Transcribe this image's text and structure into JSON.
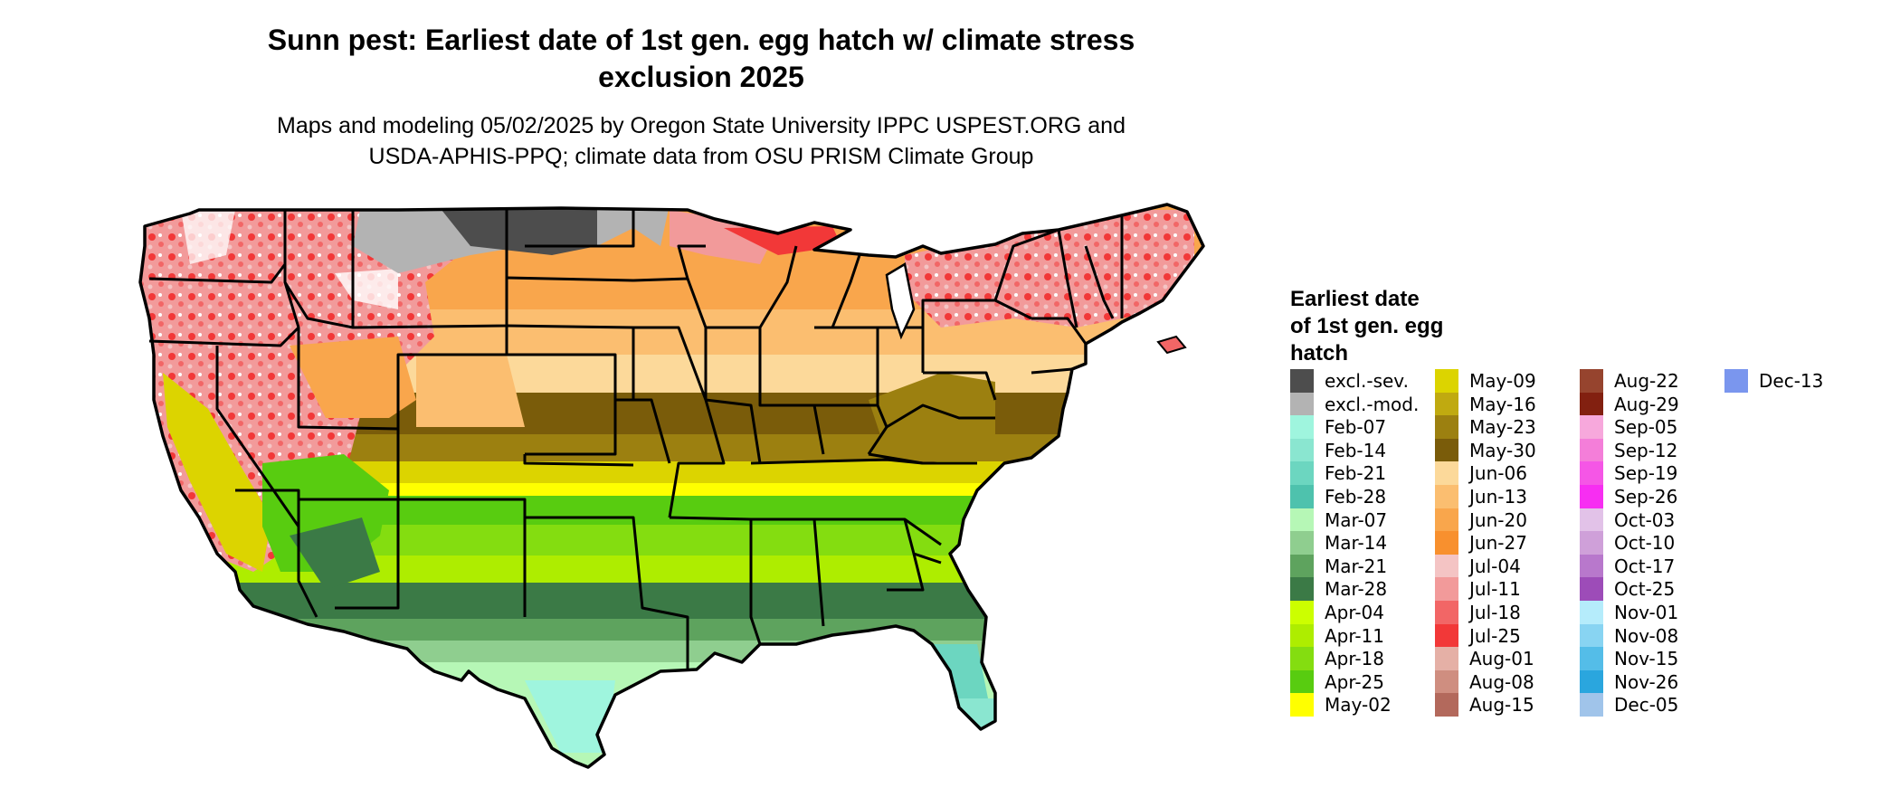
{
  "title": {
    "line1": "Sunn pest: Earliest date of 1st gen. egg hatch w/ climate stress",
    "line2": "exclusion 2025"
  },
  "subtitle": {
    "line1": "Maps and modeling 05/02/2025 by Oregon State University IPPC USPEST.ORG and",
    "line2": "USDA-APHIS-PPQ; climate data from OSU PRISM Climate Group"
  },
  "legend": {
    "title_lines": [
      "Earliest date",
      "of 1st gen. egg",
      "hatch"
    ],
    "columns": [
      [
        {
          "label": "excl.-sev.",
          "color": "#4d4d4d"
        },
        {
          "label": "excl.-mod.",
          "color": "#b3b3b3"
        },
        {
          "label": "Feb-07",
          "color": "#9ff5de"
        },
        {
          "label": "Feb-14",
          "color": "#8ae6d0"
        },
        {
          "label": "Feb-21",
          "color": "#6cd6c0"
        },
        {
          "label": "Feb-28",
          "color": "#4ec2ad"
        },
        {
          "label": "Mar-07",
          "color": "#b6f7b6"
        },
        {
          "label": "Mar-14",
          "color": "#8fce8f"
        },
        {
          "label": "Mar-21",
          "color": "#5ea35e"
        },
        {
          "label": "Mar-28",
          "color": "#3b7a46"
        },
        {
          "label": "Apr-04",
          "color": "#ccff00"
        },
        {
          "label": "Apr-11",
          "color": "#aeed00"
        },
        {
          "label": "Apr-18",
          "color": "#84dd10"
        },
        {
          "label": "Apr-25",
          "color": "#58cc10"
        },
        {
          "label": "May-02",
          "color": "#ffff00"
        }
      ],
      [
        {
          "label": "May-09",
          "color": "#dcd400"
        },
        {
          "label": "May-16",
          "color": "#c0aa10"
        },
        {
          "label": "May-23",
          "color": "#9c8010"
        },
        {
          "label": "May-30",
          "color": "#7a5c0a"
        },
        {
          "label": "Jun-06",
          "color": "#fcd99a"
        },
        {
          "label": "Jun-13",
          "color": "#fbbe70"
        },
        {
          "label": "Jun-20",
          "color": "#f9a64c"
        },
        {
          "label": "Jun-27",
          "color": "#f8902e"
        },
        {
          "label": "Jul-04",
          "color": "#f4c4c4"
        },
        {
          "label": "Jul-11",
          "color": "#f29a9a"
        },
        {
          "label": "Jul-18",
          "color": "#f26666"
        },
        {
          "label": "Jul-25",
          "color": "#f23838"
        },
        {
          "label": "Aug-01",
          "color": "#e5b0a6"
        },
        {
          "label": "Aug-08",
          "color": "#cf8e80"
        },
        {
          "label": "Aug-15",
          "color": "#b3695c"
        }
      ],
      [
        {
          "label": "Aug-22",
          "color": "#96442e"
        },
        {
          "label": "Aug-29",
          "color": "#822010"
        },
        {
          "label": "Sep-05",
          "color": "#f7a8dc"
        },
        {
          "label": "Sep-12",
          "color": "#f47ed9"
        },
        {
          "label": "Sep-19",
          "color": "#f556e6"
        },
        {
          "label": "Sep-26",
          "color": "#f72ef2"
        },
        {
          "label": "Oct-03",
          "color": "#e2c2e8"
        },
        {
          "label": "Oct-10",
          "color": "#cfa0d9"
        },
        {
          "label": "Oct-17",
          "color": "#b878cc"
        },
        {
          "label": "Oct-25",
          "color": "#9d4cb8"
        },
        {
          "label": "Nov-01",
          "color": "#b5ecfb"
        },
        {
          "label": "Nov-08",
          "color": "#88d4f2"
        },
        {
          "label": "Nov-15",
          "color": "#54bde8"
        },
        {
          "label": "Nov-26",
          "color": "#2aa6de"
        },
        {
          "label": "Dec-05",
          "color": "#a0c4ea"
        }
      ],
      [
        {
          "label": "Dec-13",
          "color": "#7a96ee"
        }
      ]
    ]
  },
  "map_colors": {
    "outline": "#000000",
    "excluded_severe": "#4d4d4d",
    "excluded_moderate": "#b3b3b3",
    "northern_band": "#f9a64c",
    "central_band": "#fcd99a",
    "mid_band": "#7a5c0a",
    "mid_south_band": "#dcd400",
    "south_band": "#84dd10",
    "gulf_band": "#3b7a46",
    "florida_tip": "#6cd6c0",
    "mountain_pink": "#f29a9a",
    "mountain_red": "#f23838",
    "snow_white": "#ffffff"
  }
}
